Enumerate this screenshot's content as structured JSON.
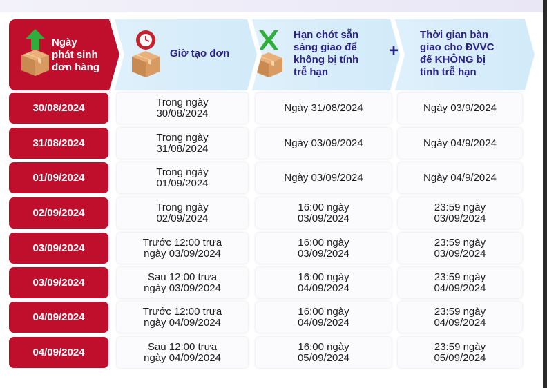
{
  "header": {
    "col1": [
      "Ngày",
      "phát sinh",
      "đơn hàng"
    ],
    "col2": [
      "Giờ tạo đơn"
    ],
    "col3": [
      "Hạn chót sẵn",
      "sàng giao để",
      "không bị tính",
      "trễ hạn"
    ],
    "col4": [
      "Thời gian bàn",
      "giao cho ĐVVC",
      "để KHÔNG bị",
      "tính trễ hạn"
    ],
    "plus": "+"
  },
  "colors": {
    "red": "#bf0f2c",
    "blue_text": "#2a2188",
    "header_bg": "#def0fb"
  },
  "icons": [
    "box-arrow-up-icon",
    "box-clock-icon",
    "box-x-icon"
  ],
  "rows": [
    {
      "date": "30/08/2024",
      "created": "Trong ngày\n30/08/2024",
      "deadline": "Ngày 31/08/2024",
      "handover": "Ngày 03/9/2024"
    },
    {
      "date": "31/08/2024",
      "created": "Trong ngày\n31/08/2024",
      "deadline": "Ngày 03/09/2024",
      "handover": "Ngày 04/9/2024"
    },
    {
      "date": "01/09/2024",
      "created": "Trong ngày\n01/09/2024",
      "deadline": "Ngày 03/09/2024",
      "handover": "Ngày 04/9/2024"
    },
    {
      "date": "02/09/2024",
      "created": "Trong ngày\n02/09/2024",
      "deadline": "16:00 ngày\n03/09/2024",
      "handover": "23:59 ngày\n03/09/2024"
    },
    {
      "date": "03/09/2024",
      "created": "Trước 12:00 trưa\nngày 03/09/2024",
      "deadline": "16:00 ngày\n03/09/2024",
      "handover": "23:59 ngày\n03/09/2024"
    },
    {
      "date": "03/09/2024",
      "created": "Sau 12:00 trưa\nngày 03/09/2024",
      "deadline": "16:00 ngày\n04/09/2024",
      "handover": "23:59 ngày\n04/09/2024"
    },
    {
      "date": "04/09/2024",
      "created": "Trước 12:00 trưa\nngày 04/09/2024",
      "deadline": "16:00 ngày\n04/09/2024",
      "handover": "23:59 ngày\n04/09/2024"
    },
    {
      "date": "04/09/2024",
      "created": "Sau 12:00 trưa\nngày 04/09/2024",
      "deadline": "16:00 ngày\n05/09/2024",
      "handover": "23:59 ngày\n05/09/2024"
    }
  ]
}
